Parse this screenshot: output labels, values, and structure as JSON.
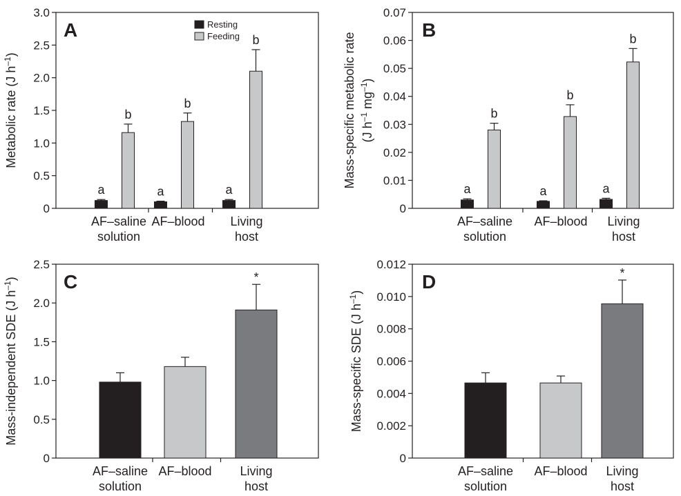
{
  "figure_title": "",
  "chart_data": [
    {
      "panel": "A",
      "type": "bar",
      "ylabel": "Metabolic rate (J h",
      "ylabel_sup": "–1",
      "ylabel_tail": ")",
      "ylim": [
        0,
        3.0
      ],
      "yticks": [
        0,
        0.5,
        1.0,
        1.5,
        2.0,
        2.5,
        3.0
      ],
      "ytick_labels": [
        "0",
        "0.5",
        "1.0",
        "1.5",
        "2.0",
        "2.5",
        "3.0"
      ],
      "categories": [
        [
          "AF–saline",
          "solution"
        ],
        [
          "AF–blood"
        ],
        [
          "Living",
          "host"
        ]
      ],
      "legend": "top-center",
      "series": [
        {
          "name": "Resting",
          "color": "#231f20",
          "values": [
            0.12,
            0.1,
            0.12
          ],
          "errors": [
            0.015,
            0.01,
            0.015
          ],
          "labels": [
            "a",
            "a",
            "a"
          ]
        },
        {
          "name": "Feeding",
          "color": "#c7c8ca",
          "values": [
            1.16,
            1.33,
            2.1
          ],
          "errors": [
            0.13,
            0.13,
            0.33
          ],
          "labels": [
            "b",
            "b",
            "b"
          ]
        }
      ]
    },
    {
      "panel": "B",
      "type": "bar",
      "ylabel": "Mass-specific metabolic rate",
      "ylabel2": "(J h",
      "ylabel2_sup1": "–1",
      "ylabel2_mid": " mg",
      "ylabel2_sup2": "–1",
      "ylabel2_tail": ")",
      "ylim": [
        0,
        0.07
      ],
      "yticks": [
        0,
        0.01,
        0.02,
        0.03,
        0.04,
        0.05,
        0.06,
        0.07
      ],
      "ytick_labels": [
        "0",
        "0.01",
        "0.02",
        "0.03",
        "0.04",
        "0.05",
        "0.06",
        "0.07"
      ],
      "categories": [
        [
          "AF–saline",
          "solution"
        ],
        [
          "AF–blood"
        ],
        [
          "Living",
          "host"
        ]
      ],
      "series": [
        {
          "name": "Resting",
          "color": "#231f20",
          "values": [
            0.003,
            0.0025,
            0.0032
          ],
          "errors": [
            0.0004,
            0.0002,
            0.0004
          ],
          "labels": [
            "a",
            "a",
            "a"
          ]
        },
        {
          "name": "Feeding",
          "color": "#c7c8ca",
          "values": [
            0.028,
            0.0328,
            0.0523
          ],
          "errors": [
            0.0024,
            0.0042,
            0.0048
          ],
          "labels": [
            "b",
            "b",
            "b"
          ]
        }
      ]
    },
    {
      "panel": "C",
      "type": "bar",
      "ylabel": "Mass-independent SDE (J h",
      "ylabel_sup": "–1",
      "ylabel_tail": ")",
      "ylim": [
        0,
        2.5
      ],
      "yticks": [
        0,
        0.5,
        1.0,
        1.5,
        2.0,
        2.5
      ],
      "ytick_labels": [
        "0",
        "0.5",
        "1.0",
        "1.5",
        "2.0",
        "2.5"
      ],
      "categories": [
        [
          "AF–saline",
          "solution"
        ],
        [
          "AF–blood"
        ],
        [
          "Living",
          "host"
        ]
      ],
      "values": [
        0.98,
        1.18,
        1.91
      ],
      "errors": [
        0.12,
        0.12,
        0.33
      ],
      "colors": [
        "#231f20",
        "#c7c8ca",
        "#7a7b7e"
      ],
      "labels": [
        "",
        "",
        "*"
      ]
    },
    {
      "panel": "D",
      "type": "bar",
      "ylabel": "Mass-specific SDE (J h",
      "ylabel_sup": "–1",
      "ylabel_tail": ")",
      "ylim": [
        0,
        0.012
      ],
      "yticks": [
        0,
        0.002,
        0.004,
        0.006,
        0.008,
        0.01,
        0.012
      ],
      "ytick_labels": [
        "0",
        "0.002",
        "0.004",
        "0.006",
        "0.008",
        "0.010",
        "0.012"
      ],
      "categories": [
        [
          "AF–saline",
          "solution"
        ],
        [
          "AF–blood"
        ],
        [
          "Living",
          "host"
        ]
      ],
      "values": [
        0.00465,
        0.00465,
        0.00955
      ],
      "errors": [
        0.00063,
        0.00043,
        0.00147
      ],
      "colors": [
        "#231f20",
        "#c7c8ca",
        "#7a7b7e"
      ],
      "labels": [
        "",
        "",
        "*"
      ]
    }
  ]
}
